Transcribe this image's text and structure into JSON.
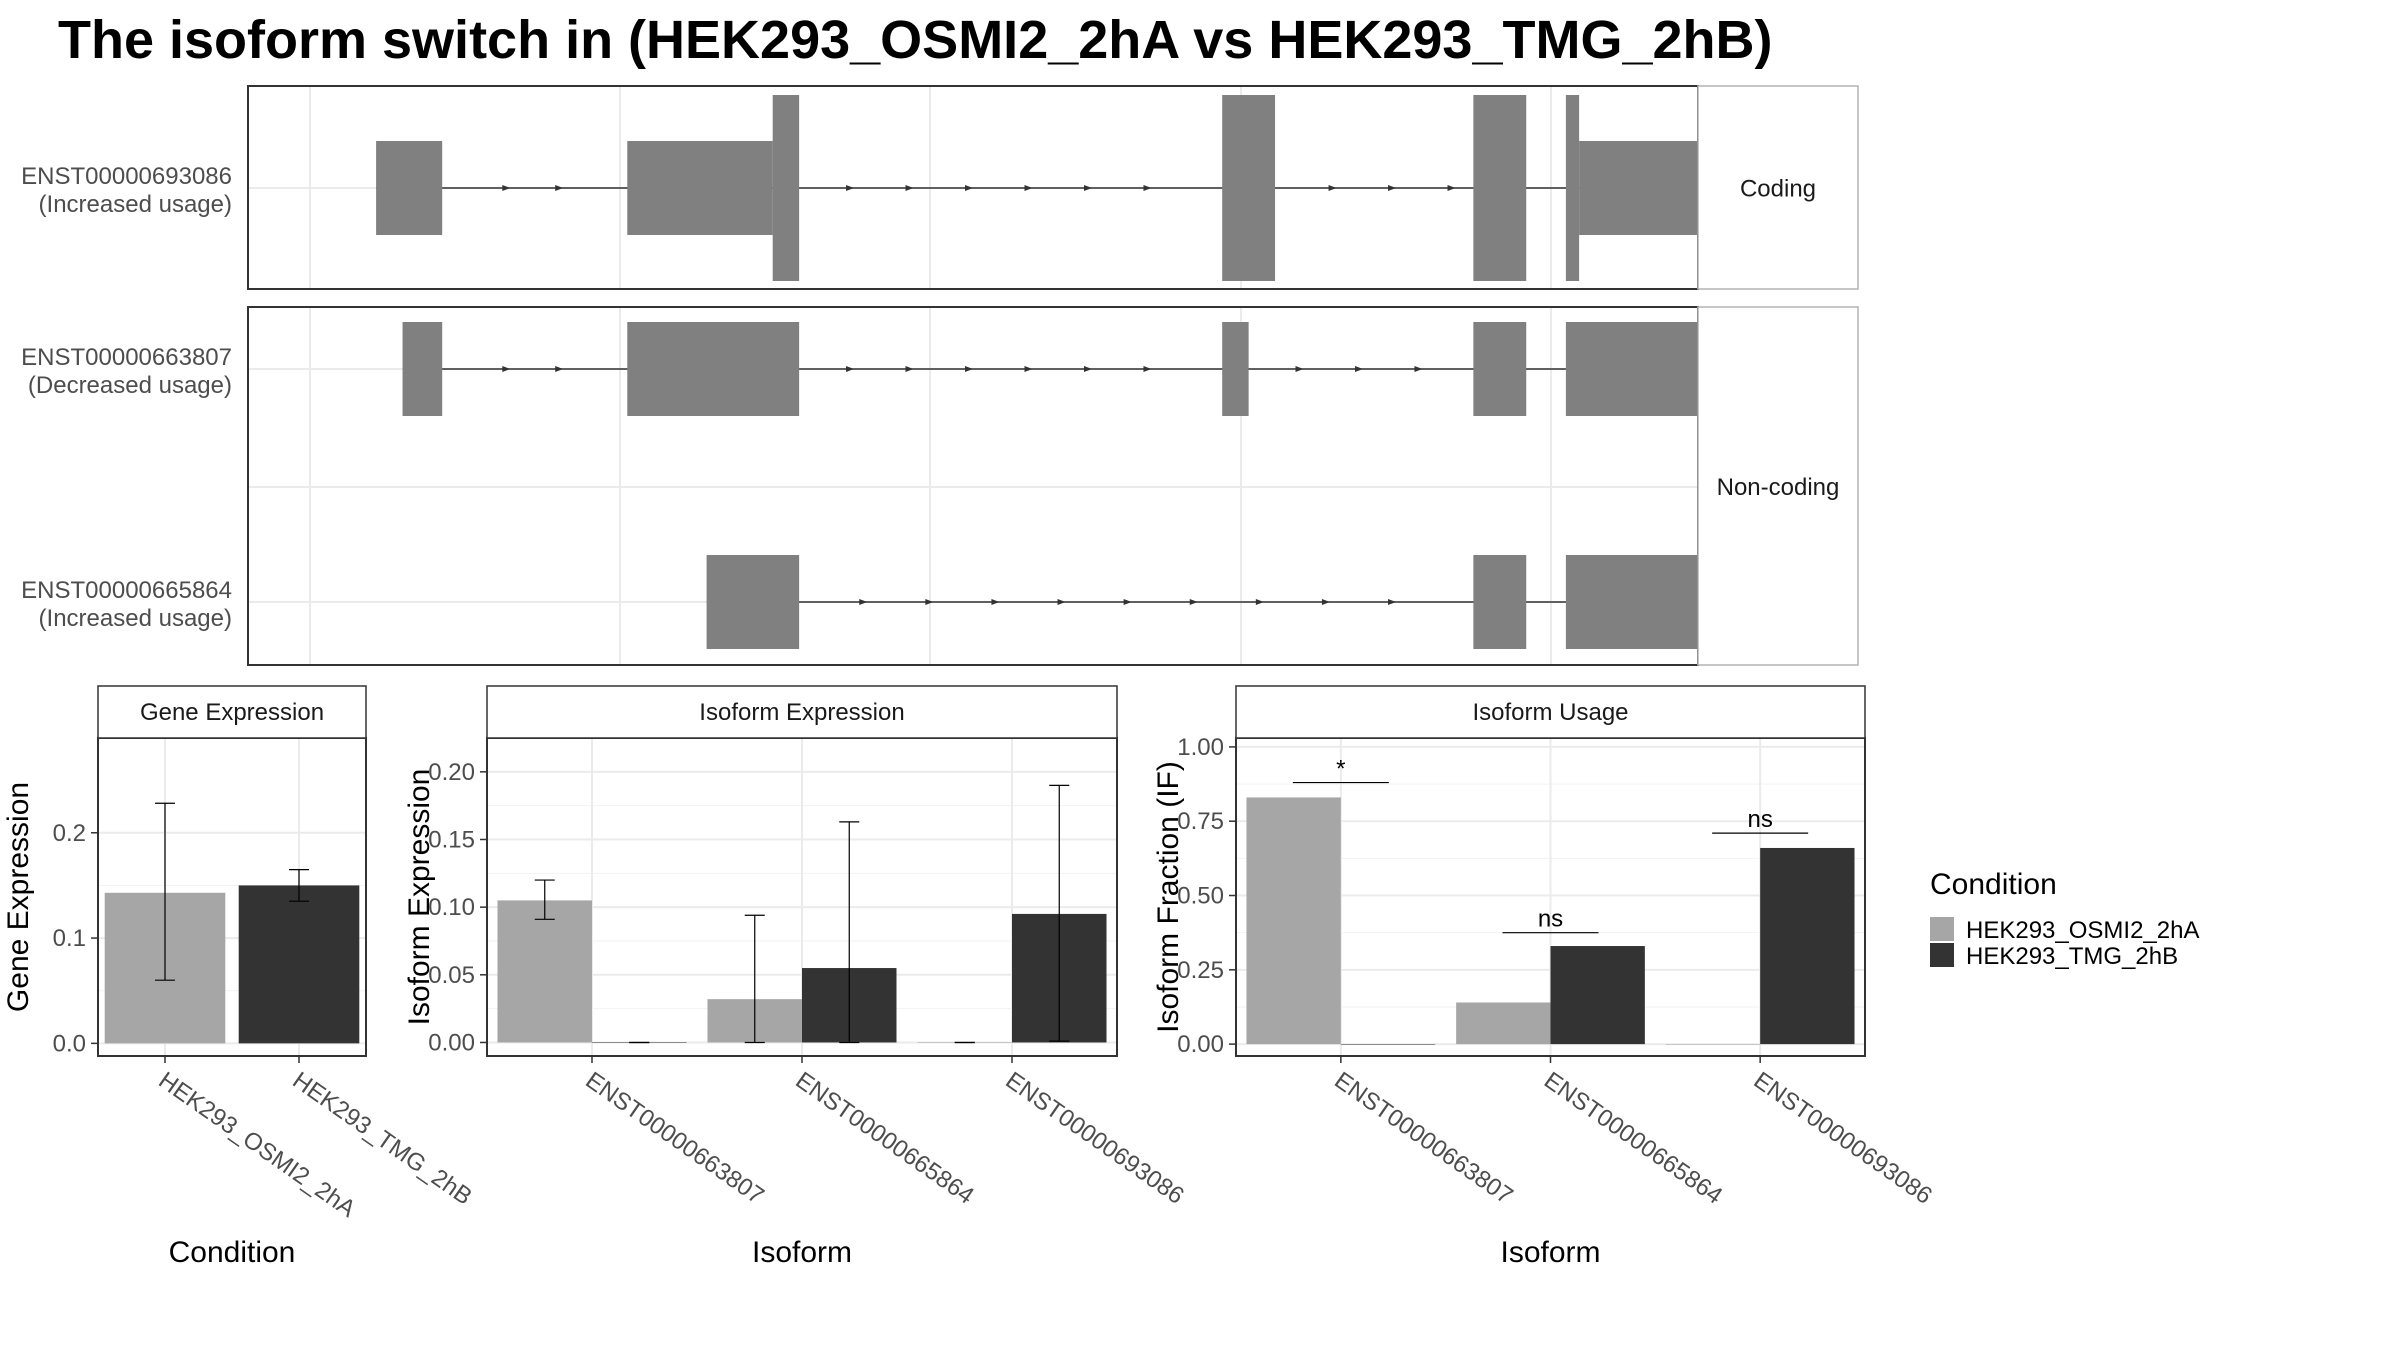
{
  "title": "The isoform switch in  (HEK293_OSMI2_2hA vs HEK293_TMG_2hB)",
  "colors": {
    "cond_a": "#a6a6a6",
    "cond_b": "#333333",
    "exon": "#808080",
    "grid": "#ebebeb",
    "strip": "#ffffff"
  },
  "chart_data": [
    {
      "type": "gene-structure",
      "facets": [
        {
          "label": "Coding",
          "isoforms": [
            {
              "id": "ENST00000693086",
              "usage": "(Increased usage)",
              "exons": [
                [
                  0.05,
                  0.1,
                  "n"
                ],
                [
                  0.24,
                  0.35,
                  "n"
                ],
                [
                  0.35,
                  0.37,
                  "w"
                ],
                [
                  0.69,
                  0.73,
                  "w"
                ],
                [
                  0.88,
                  0.92,
                  "w"
                ],
                [
                  0.95,
                  0.96,
                  "w"
                ],
                [
                  0.96,
                  1.05,
                  "n"
                ]
              ],
              "arrows": [
                0.15,
                0.19,
                0.28,
                0.32,
                0.41,
                0.455,
                0.5,
                0.545,
                0.59,
                0.635,
                0.775,
                0.82,
                0.865,
                0.985
              ]
            }
          ]
        },
        {
          "label": "Non-coding",
          "isoforms": [
            {
              "id": "ENST00000663807",
              "usage": "(Decreased usage)",
              "exons": [
                [
                  0.07,
                  0.1,
                  "n"
                ],
                [
                  0.24,
                  0.37,
                  "n"
                ],
                [
                  0.69,
                  0.71,
                  "n"
                ],
                [
                  0.88,
                  0.92,
                  "n"
                ],
                [
                  0.95,
                  1.05,
                  "n"
                ]
              ],
              "arrows": [
                0.15,
                0.19,
                0.41,
                0.455,
                0.5,
                0.545,
                0.59,
                0.635,
                0.75,
                0.795,
                0.84,
                0.985
              ]
            },
            {
              "id": "ENST00000665864",
              "usage": "(Increased usage)",
              "exons": [
                [
                  0.3,
                  0.37,
                  "n"
                ],
                [
                  0.88,
                  0.92,
                  "n"
                ],
                [
                  0.95,
                  1.05,
                  "n"
                ]
              ],
              "arrows": [
                0.42,
                0.47,
                0.52,
                0.57,
                0.62,
                0.67,
                0.72,
                0.77,
                0.82,
                0.985
              ]
            }
          ]
        }
      ]
    },
    {
      "type": "bar",
      "title": "Gene Expression",
      "xlabel": "Condition",
      "ylabel": "Gene Expression",
      "ylim": [
        -0.012,
        0.29
      ],
      "yticks": [
        "0.0",
        "0.1",
        "0.2"
      ],
      "ytick_values": [
        0,
        0.1,
        0.2
      ],
      "categories": [
        "HEK293_OSMI2_2hA",
        "HEK293_TMG_2hB"
      ],
      "values": [
        0.143,
        0.15
      ],
      "errors": [
        [
          0.06,
          0.228
        ],
        [
          0.135,
          0.165
        ]
      ]
    },
    {
      "type": "bar",
      "title": "Isoform Expression",
      "xlabel": "Isoform",
      "ylabel": "Isoform Expression",
      "ylim": [
        -0.01,
        0.225
      ],
      "yticks": [
        "0.00",
        "0.05",
        "0.10",
        "0.15",
        "0.20"
      ],
      "ytick_values": [
        0,
        0.05,
        0.1,
        0.15,
        0.2
      ],
      "categories": [
        "ENST00000663807",
        "ENST00000665864",
        "ENST00000693086"
      ],
      "series": [
        {
          "name": "HEK293_OSMI2_2hA",
          "values": [
            0.105,
            0.032,
            0.0
          ],
          "errors": [
            [
              0.091,
              0.12
            ],
            [
              0.0,
              0.094
            ],
            [
              0.0,
              0.0
            ]
          ]
        },
        {
          "name": "HEK293_TMG_2hB",
          "values": [
            0.0,
            0.055,
            0.095
          ],
          "errors": [
            [
              0.0,
              0.0
            ],
            [
              0.0,
              0.163
            ],
            [
              0.001,
              0.19
            ]
          ]
        }
      ]
    },
    {
      "type": "bar",
      "title": "Isoform Usage",
      "xlabel": "Isoform",
      "ylabel": "Isoform Fraction (IF)",
      "ylim": [
        -0.04,
        1.03
      ],
      "yticks": [
        "0.00",
        "0.25",
        "0.50",
        "0.75",
        "1.00"
      ],
      "ytick_values": [
        0,
        0.25,
        0.5,
        0.75,
        1.0
      ],
      "categories": [
        "ENST00000663807",
        "ENST00000665864",
        "ENST00000693086"
      ],
      "series": [
        {
          "name": "HEK293_OSMI2_2hA",
          "values": [
            0.83,
            0.14,
            0.0
          ]
        },
        {
          "name": "HEK293_TMG_2hB",
          "values": [
            0.0,
            0.33,
            0.66
          ]
        }
      ],
      "significance": [
        {
          "label": "*",
          "y": 0.88
        },
        {
          "label": "ns",
          "y": 0.375
        },
        {
          "label": "ns",
          "y": 0.71
        }
      ]
    }
  ],
  "legend": {
    "title": "Condition",
    "items": [
      "HEK293_OSMI2_2hA",
      "HEK293_TMG_2hB"
    ]
  }
}
